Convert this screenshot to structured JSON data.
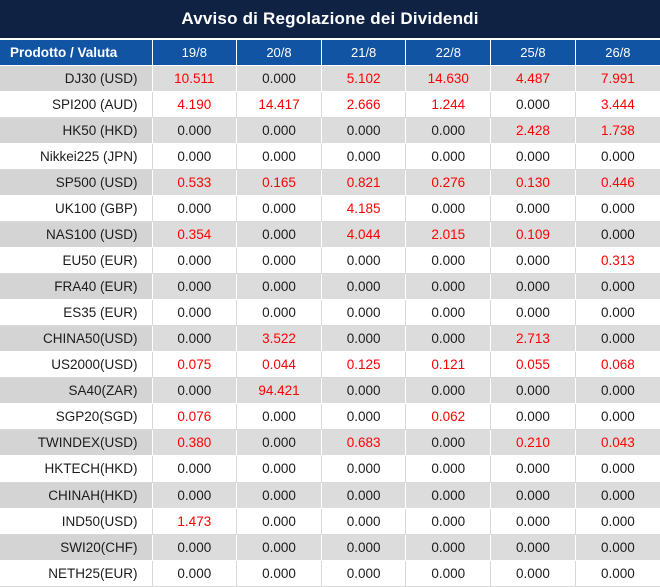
{
  "title": "Avviso di Regolazione dei Dividendi",
  "table": {
    "product_header": "Prodotto / Valuta",
    "date_headers": [
      "19/8",
      "20/8",
      "21/8",
      "22/8",
      "25/8",
      "26/8"
    ],
    "rows": [
      {
        "product": "DJ30 (USD)",
        "values": [
          "10.511",
          "0.000",
          "5.102",
          "14.630",
          "4.487",
          "7.991"
        ]
      },
      {
        "product": "SPI200 (AUD)",
        "values": [
          "4.190",
          "14.417",
          "2.666",
          "1.244",
          "0.000",
          "3.444"
        ]
      },
      {
        "product": "HK50 (HKD)",
        "values": [
          "0.000",
          "0.000",
          "0.000",
          "0.000",
          "2.428",
          "1.738"
        ]
      },
      {
        "product": "Nikkei225 (JPN)",
        "values": [
          "0.000",
          "0.000",
          "0.000",
          "0.000",
          "0.000",
          "0.000"
        ]
      },
      {
        "product": "SP500 (USD)",
        "values": [
          "0.533",
          "0.165",
          "0.821",
          "0.276",
          "0.130",
          "0.446"
        ]
      },
      {
        "product": "UK100 (GBP)",
        "values": [
          "0.000",
          "0.000",
          "4.185",
          "0.000",
          "0.000",
          "0.000"
        ]
      },
      {
        "product": "NAS100 (USD)",
        "values": [
          "0.354",
          "0.000",
          "4.044",
          "2.015",
          "0.109",
          "0.000"
        ]
      },
      {
        "product": "EU50 (EUR)",
        "values": [
          "0.000",
          "0.000",
          "0.000",
          "0.000",
          "0.000",
          "0.313"
        ]
      },
      {
        "product": "FRA40 (EUR)",
        "values": [
          "0.000",
          "0.000",
          "0.000",
          "0.000",
          "0.000",
          "0.000"
        ]
      },
      {
        "product": "ES35 (EUR)",
        "values": [
          "0.000",
          "0.000",
          "0.000",
          "0.000",
          "0.000",
          "0.000"
        ]
      },
      {
        "product": "CHINA50(USD)",
        "values": [
          "0.000",
          "3.522",
          "0.000",
          "0.000",
          "2.713",
          "0.000"
        ]
      },
      {
        "product": "US2000(USD)",
        "values": [
          "0.075",
          "0.044",
          "0.125",
          "0.121",
          "0.055",
          "0.068"
        ]
      },
      {
        "product": "SA40(ZAR)",
        "values": [
          "0.000",
          "94.421",
          "0.000",
          "0.000",
          "0.000",
          "0.000"
        ]
      },
      {
        "product": "SGP20(SGD)",
        "values": [
          "0.076",
          "0.000",
          "0.000",
          "0.062",
          "0.000",
          "0.000"
        ]
      },
      {
        "product": "TWINDEX(USD)",
        "values": [
          "0.380",
          "0.000",
          "0.683",
          "0.000",
          "0.210",
          "0.043"
        ]
      },
      {
        "product": "HKTECH(HKD)",
        "values": [
          "0.000",
          "0.000",
          "0.000",
          "0.000",
          "0.000",
          "0.000"
        ]
      },
      {
        "product": "CHINAH(HKD)",
        "values": [
          "0.000",
          "0.000",
          "0.000",
          "0.000",
          "0.000",
          "0.000"
        ]
      },
      {
        "product": "IND50(USD)",
        "values": [
          "1.473",
          "0.000",
          "0.000",
          "0.000",
          "0.000",
          "0.000"
        ]
      },
      {
        "product": "SWI20(CHF)",
        "values": [
          "0.000",
          "0.000",
          "0.000",
          "0.000",
          "0.000",
          "0.000"
        ]
      },
      {
        "product": "NETH25(EUR)",
        "values": [
          "0.000",
          "0.000",
          "0.000",
          "0.000",
          "0.000",
          "0.000"
        ]
      }
    ]
  },
  "colors": {
    "title_bg": "#0F2244",
    "header_bg": "#1254A4",
    "header_text": "#FFFFFF",
    "row_gray": "#DCDCDC",
    "row_gray_label": "#D4D4D4",
    "row_white": "#FFFFFF",
    "grid_on_white": "#D9D9D9",
    "value_zero": "#1C1C1C",
    "value_dividend": "#FF0000"
  }
}
